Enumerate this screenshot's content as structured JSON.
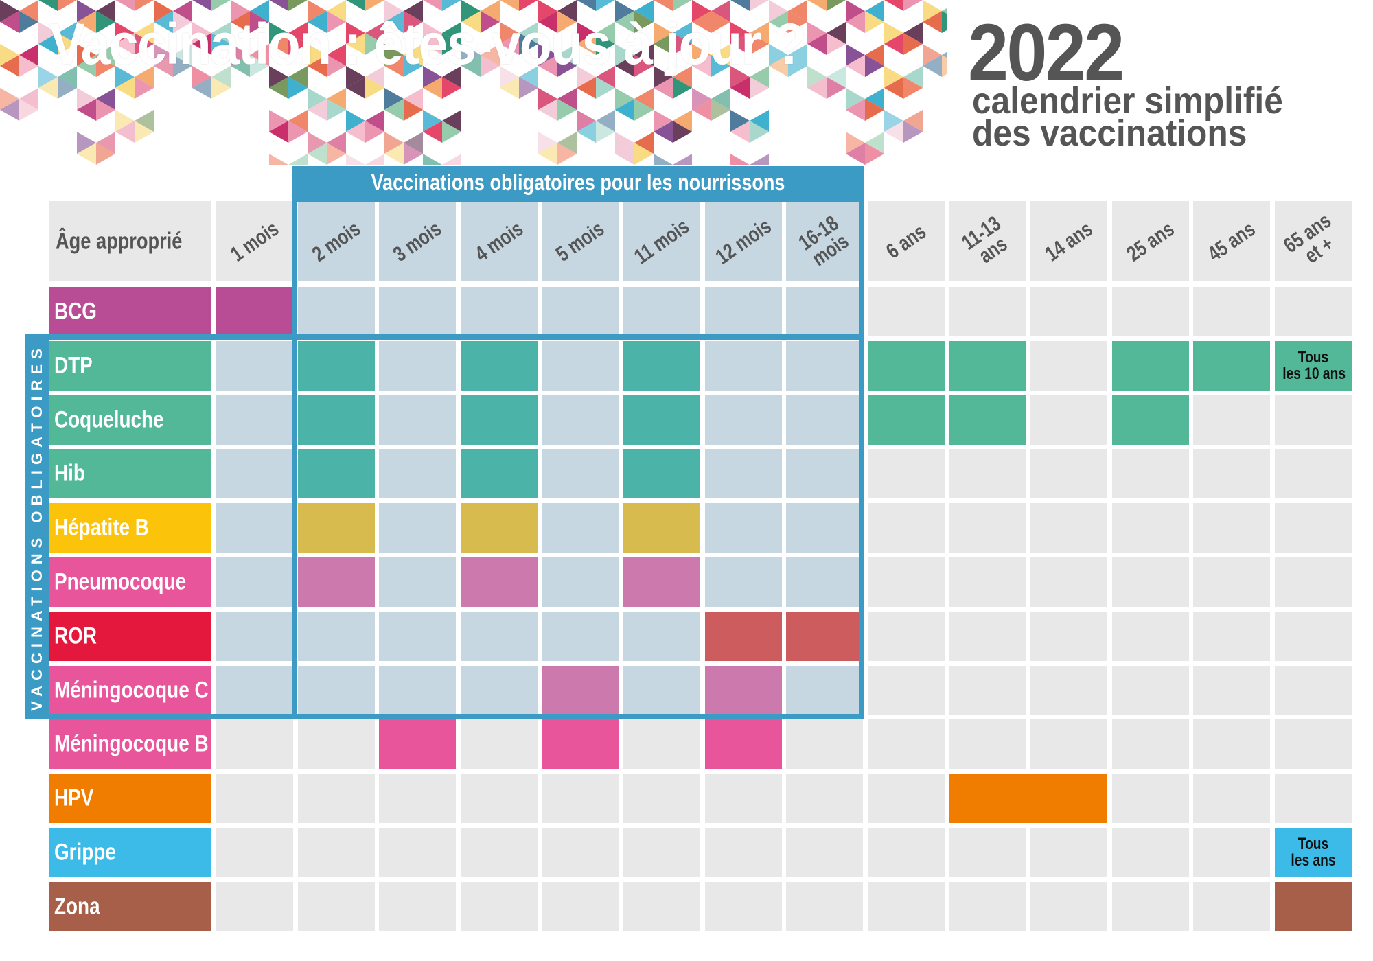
{
  "header": {
    "title": "Vaccination : êtes-vous à jour ?",
    "year": "2022",
    "subtitle_line1": "calendrier simplifié",
    "subtitle_line2": "des vaccinations"
  },
  "box": {
    "infant_title": "Vaccinations obligatoires pour les nourrissons",
    "side_label": "VACCINATIONS OBLIGATOIRES"
  },
  "colors": {
    "box_border": "#3b9bc4",
    "cell_empty": "#e8e8e8",
    "cell_empty_in_box": "#c6d7e2",
    "grid_in_box": "#dce9f2",
    "banner_palette": [
      "#e2335a",
      "#f07a5a",
      "#2aa9c9",
      "#1b8a6b",
      "#7b3f8c",
      "#c2185b",
      "#f4a261",
      "#8bc7a3",
      "#f7d774",
      "#e98aa8",
      "#5a2a4a",
      "#3c6e91",
      "#d6446e",
      "#f4b6c8",
      "#9fd3c7",
      "#e45c3a",
      "#6b8e4e",
      "#b83b7d",
      "#f2c6d6",
      "#46b3d1"
    ]
  },
  "table": {
    "corner_label": "Âge approprié",
    "columns": [
      "1 mois",
      "2 mois",
      "3 mois",
      "4 mois",
      "5 mois",
      "11 mois",
      "12 mois",
      "16-18\nmois",
      "6 ans",
      "11-13\nans",
      "14 ans",
      "25 ans",
      "45 ans",
      "65 ans\net +"
    ],
    "box_columns": [
      1,
      2,
      3,
      4,
      5,
      6,
      7
    ],
    "rows": [
      {
        "name": "BCG",
        "label_color": "#b84d95",
        "cells": [
          {
            "col": 0,
            "color": "#b84d95"
          }
        ]
      },
      {
        "name": "DTP",
        "label_color": "#52b897",
        "cells": [
          {
            "col": 1,
            "color": "#4bb3a8"
          },
          {
            "col": 3,
            "color": "#4bb3a8"
          },
          {
            "col": 5,
            "color": "#4bb3a8"
          },
          {
            "col": 8,
            "color": "#52b897"
          },
          {
            "col": 9,
            "color": "#52b897"
          },
          {
            "col": 11,
            "color": "#52b897"
          },
          {
            "col": 12,
            "color": "#52b897"
          },
          {
            "col": 13,
            "color": "#52b897",
            "note": "Tous\nles 10 ans"
          }
        ]
      },
      {
        "name": "Coqueluche",
        "label_color": "#52b897",
        "cells": [
          {
            "col": 1,
            "color": "#4bb3a8"
          },
          {
            "col": 3,
            "color": "#4bb3a8"
          },
          {
            "col": 5,
            "color": "#4bb3a8"
          },
          {
            "col": 8,
            "color": "#52b897"
          },
          {
            "col": 9,
            "color": "#52b897"
          },
          {
            "col": 11,
            "color": "#52b897"
          }
        ]
      },
      {
        "name": "Hib",
        "label_color": "#52b897",
        "cells": [
          {
            "col": 1,
            "color": "#4bb3a8"
          },
          {
            "col": 3,
            "color": "#4bb3a8"
          },
          {
            "col": 5,
            "color": "#4bb3a8"
          }
        ]
      },
      {
        "name": "Hépatite B",
        "label_color": "#fcc30b",
        "cells": [
          {
            "col": 1,
            "color": "#d8bb4e"
          },
          {
            "col": 3,
            "color": "#d8bb4e"
          },
          {
            "col": 5,
            "color": "#d8bb4e"
          }
        ]
      },
      {
        "name": "Pneumocoque",
        "label_color": "#e9559a",
        "cells": [
          {
            "col": 1,
            "color": "#cc7aad"
          },
          {
            "col": 3,
            "color": "#cc7aad"
          },
          {
            "col": 5,
            "color": "#cc7aad"
          }
        ]
      },
      {
        "name": "ROR",
        "label_color": "#e4183c",
        "cells": [
          {
            "col": 6,
            "color": "#cc5c5e"
          },
          {
            "col": 7,
            "color": "#cc5c5e"
          }
        ]
      },
      {
        "name": "Méningocoque C",
        "label_color": "#e9559a",
        "cells": [
          {
            "col": 4,
            "color": "#cc7aad"
          },
          {
            "col": 6,
            "color": "#cc7aad"
          }
        ]
      },
      {
        "name": "Méningocoque B",
        "label_color": "#e9559a",
        "cells": [
          {
            "col": 2,
            "color": "#e9559a"
          },
          {
            "col": 4,
            "color": "#e9559a"
          },
          {
            "col": 6,
            "color": "#e9559a"
          }
        ]
      },
      {
        "name": "HPV",
        "label_color": "#f07d00",
        "cells": [
          {
            "col": 9,
            "span": 2,
            "color": "#f07d00"
          }
        ]
      },
      {
        "name": "Grippe",
        "label_color": "#3dbbe8",
        "cells": [
          {
            "col": 13,
            "color": "#3dbbe8",
            "note": "Tous\nles ans"
          }
        ]
      },
      {
        "name": "Zona",
        "label_color": "#a85f4a",
        "cells": [
          {
            "col": 13,
            "color": "#a85f4a"
          }
        ]
      }
    ]
  }
}
